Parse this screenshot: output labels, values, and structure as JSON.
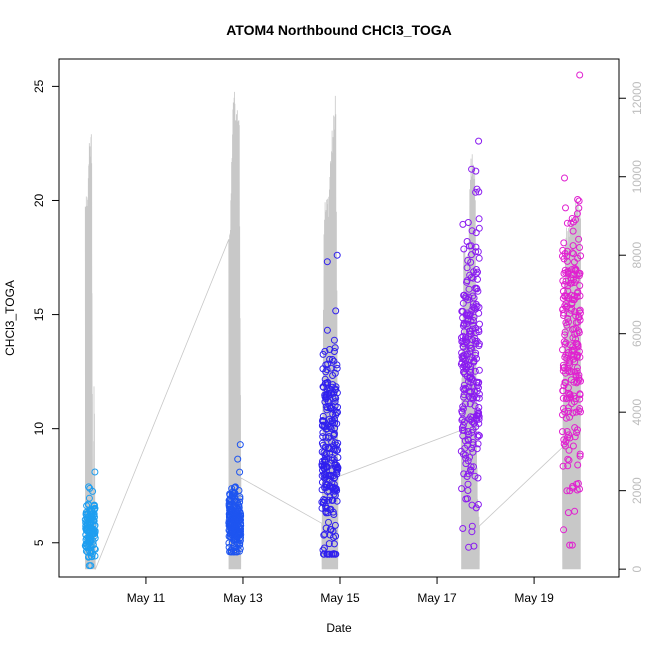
{
  "chart_data": {
    "type": "scatter",
    "title": "ATOM4 Northbound CHCl3_TOGA",
    "xlabel": "Date",
    "ylabel": "CHCl3_TOGA",
    "x_tick_labels": [
      "May 11",
      "May 13",
      "May 15",
      "May 17",
      "May 19"
    ],
    "x_tick_dates": [
      "2016-05-11",
      "2016-05-13",
      "2016-05-15",
      "2016-05-17",
      "2016-05-19"
    ],
    "xlim": [
      "2016-05-09T05:00",
      "2016-05-20T18:00"
    ],
    "ylim": [
      3.5,
      26.2
    ],
    "yticks": [
      5,
      10,
      15,
      20,
      25
    ],
    "y2lim": [
      -200,
      13000
    ],
    "y2ticks": [
      0,
      2000,
      4000,
      6000,
      8000,
      10000,
      12000
    ],
    "y2_tick_labels": [
      "0",
      "2000",
      "4000",
      "6000",
      "8000",
      "10000",
      "12000"
    ],
    "secondary_series_color": "#c8c8c8",
    "flights": [
      {
        "start": "2016-05-09T18:00",
        "end": "2016-05-09T23:00",
        "color": "#1e9ef0",
        "center": 5.6,
        "spread": 0.7,
        "n": 130,
        "min": 4.0,
        "max": 8.1,
        "altitude_profile": [
          9500,
          9500,
          9500,
          11000,
          11200,
          11200,
          300,
          5000,
          0
        ]
      },
      {
        "start": "2016-05-12T17:00",
        "end": "2016-05-12T23:00",
        "color": "#1e55f0",
        "center": 6.0,
        "spread": 0.7,
        "n": 210,
        "min": 4.6,
        "max": 9.3,
        "altitude_profile": [
          9000,
          9000,
          11500,
          12500,
          11800,
          12000,
          12000,
          2500
        ]
      },
      {
        "start": "2016-05-14T15:00",
        "end": "2016-05-14T23:00",
        "color": "#3020ee",
        "center": 8.8,
        "spread": 2.6,
        "n": 240,
        "min": 4.5,
        "max": 17.6,
        "altitude_profile": [
          1200,
          9500,
          9500,
          9800,
          11000,
          11500,
          12600,
          2500
        ]
      },
      {
        "start": "2016-05-17T12:00",
        "end": "2016-05-17T21:00",
        "color": "#8a1cf0",
        "center": 12.5,
        "spread": 3.3,
        "n": 260,
        "min": 4.8,
        "max": 22.6,
        "altitude_profile": [
          3600,
          8400,
          8200,
          8000,
          10500,
          10800,
          10800,
          2000,
          1200
        ]
      },
      {
        "start": "2016-05-19T14:00",
        "end": "2016-05-19T23:00",
        "color": "#e020d0",
        "center": 13.5,
        "spread": 3.2,
        "n": 230,
        "min": 4.9,
        "max": 25.5,
        "altitude_profile": [
          3300,
          8600,
          9000,
          9200,
          9400,
          9500,
          9600
        ]
      }
    ],
    "grid": false,
    "legend": "none"
  }
}
